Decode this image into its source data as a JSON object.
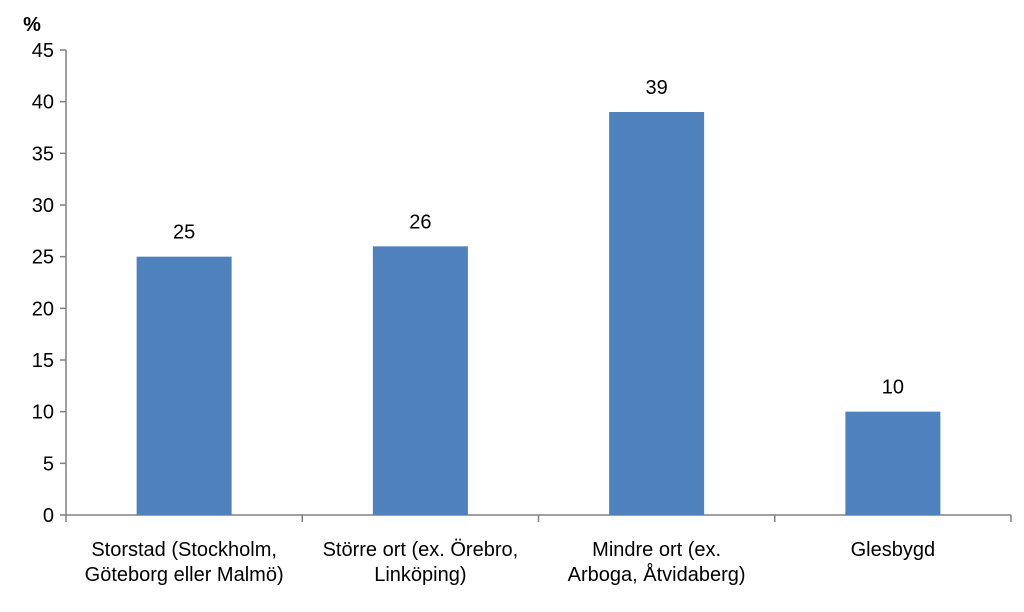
{
  "chart_data": {
    "type": "bar",
    "title": "",
    "xlabel": "",
    "ylabel": "%",
    "ylim": [
      0,
      45
    ],
    "yticks": [
      0,
      5,
      10,
      15,
      20,
      25,
      30,
      35,
      40,
      45
    ],
    "grid": false,
    "categories": [
      [
        "Storstad (Stockholm,",
        "Göteborg eller Malmö)"
      ],
      [
        "Större ort (ex. Örebro,",
        "Linköping)"
      ],
      [
        "Mindre ort (ex.",
        "Arboga, Åtvidaberg)"
      ],
      [
        "Glesbygd"
      ]
    ],
    "values": [
      25,
      26,
      39,
      10
    ],
    "data_labels": [
      "25",
      "26",
      "39",
      "10"
    ],
    "colors": {
      "bar": "#4F81BD",
      "axis": "#808080",
      "text": "#000000"
    }
  }
}
